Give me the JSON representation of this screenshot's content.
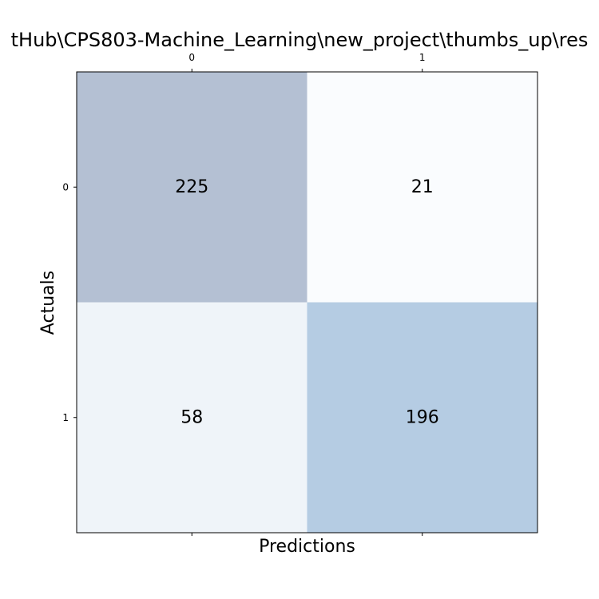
{
  "chart_data": {
    "type": "heatmap",
    "title": "tHub\\CPS803-Machine_Learning\\new_project\\thumbs_up\\res",
    "xlabel": "Predictions",
    "ylabel": "Actuals",
    "x_categories": [
      "0",
      "1"
    ],
    "y_categories": [
      "0",
      "1"
    ],
    "values": [
      [
        225,
        21
      ],
      [
        58,
        196
      ]
    ],
    "cell_colors": [
      [
        "#b4c0d3",
        "#fafcfe"
      ],
      [
        "#eff4f9",
        "#b5cce3"
      ]
    ],
    "grid": false,
    "legend": "none"
  }
}
